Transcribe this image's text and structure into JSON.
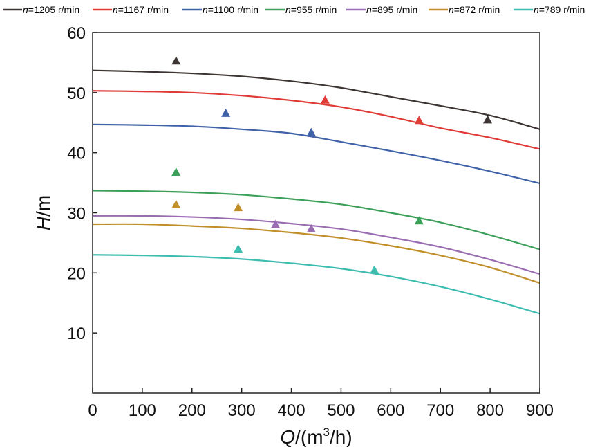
{
  "chart_data": {
    "type": "line",
    "xlabel": {
      "var": "Q",
      "rest": "/(m",
      "sup": "3",
      "end": "/h)"
    },
    "ylabel": {
      "var": "H",
      "rest": "/m"
    },
    "xlim": [
      0,
      900
    ],
    "ylim": [
      0,
      60
    ],
    "xticks": [
      0,
      100,
      200,
      300,
      400,
      500,
      600,
      700,
      800,
      900
    ],
    "yticks": [
      10,
      20,
      30,
      40,
      50,
      60
    ],
    "grid": false,
    "legend_position": "top",
    "x": [
      0,
      100,
      200,
      300,
      400,
      500,
      600,
      700,
      800,
      900
    ],
    "series": [
      {
        "name": "n=1205 r/min",
        "n_label": "n",
        "suffix": "=1205 r/min",
        "color": "#3d3533",
        "values": [
          53.7,
          53.5,
          53.2,
          52.7,
          51.9,
          50.8,
          49.3,
          47.8,
          46.2,
          43.9
        ],
        "points": [
          {
            "x": 168,
            "y": 55.3
          },
          {
            "x": 795,
            "y": 45.5
          }
        ]
      },
      {
        "name": "n=1167 r/min",
        "n_label": "n",
        "suffix": "=1167 r/min",
        "color": "#e03b37",
        "values": [
          50.3,
          50.2,
          50.0,
          49.5,
          48.7,
          47.6,
          46.0,
          44.1,
          42.5,
          40.6
        ],
        "points": [
          {
            "x": 468,
            "y": 48.8
          },
          {
            "x": 657,
            "y": 45.4
          }
        ]
      },
      {
        "name": "n=1100 r/min",
        "n_label": "n",
        "suffix": "=1100 r/min",
        "color": "#3f62a8",
        "values": [
          44.7,
          44.6,
          44.4,
          43.9,
          43.2,
          41.8,
          40.3,
          38.7,
          36.9,
          34.9
        ],
        "points": [
          {
            "x": 268,
            "y": 46.6
          },
          {
            "x": 440,
            "y": 43.4
          }
        ]
      },
      {
        "name": "n=955 r/min",
        "n_label": "n",
        "suffix": "=955 r/min",
        "color": "#3ca05a",
        "values": [
          33.7,
          33.6,
          33.4,
          33.0,
          32.3,
          31.4,
          30.0,
          28.4,
          26.3,
          23.9
        ],
        "points": [
          {
            "x": 168,
            "y": 36.8
          },
          {
            "x": 657,
            "y": 28.7
          }
        ]
      },
      {
        "name": "n=895 r/min",
        "n_label": "n",
        "suffix": "=895 r/min",
        "color": "#9a6db3",
        "values": [
          29.5,
          29.5,
          29.3,
          28.9,
          28.2,
          27.3,
          25.9,
          24.3,
          22.2,
          19.8
        ],
        "points": [
          {
            "x": 368,
            "y": 28.1
          },
          {
            "x": 440,
            "y": 27.4
          }
        ]
      },
      {
        "name": "n=872 r/min",
        "n_label": "n",
        "suffix": "=872 r/min",
        "color": "#c18f2a",
        "values": [
          28.1,
          28.1,
          27.8,
          27.4,
          26.7,
          25.8,
          24.5,
          22.9,
          20.9,
          18.3
        ],
        "points": [
          {
            "x": 168,
            "y": 31.4
          },
          {
            "x": 293,
            "y": 30.9
          }
        ]
      },
      {
        "name": "n=789 r/min",
        "n_label": "n",
        "suffix": "=789 r/min",
        "color": "#3cbdb0",
        "values": [
          23.0,
          22.9,
          22.7,
          22.3,
          21.6,
          20.7,
          19.4,
          17.7,
          15.6,
          13.2
        ],
        "points": [
          {
            "x": 293,
            "y": 24.0
          },
          {
            "x": 567,
            "y": 20.5
          }
        ]
      }
    ]
  }
}
